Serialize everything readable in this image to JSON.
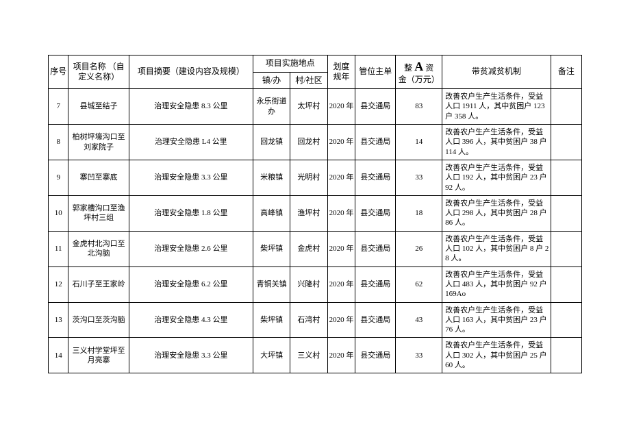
{
  "headers": {
    "seq": "序号",
    "name": "项目名称\n（自定义名称）",
    "summary": "项目摘要（建设内容及规模）",
    "location_group": "项目实施地点",
    "town": "镇/办",
    "village": "村/社区",
    "year": "划度规年",
    "unit": "管位主单",
    "fund_prefix": "整",
    "fund_mid": "A",
    "fund_suffix": "资",
    "fund_line2": "金（万元）",
    "mechanism": "带贫减贫机制",
    "remark": "备注"
  },
  "rows": [
    {
      "seq": "7",
      "name": "县城至结子",
      "summary": "治理安全隐患 8.3 公里",
      "town": "永乐街道办",
      "village": "太坪村",
      "year": "2020 年",
      "unit": "县交通局",
      "fund": "83",
      "mechanism": "改善农户生产生活条件，受益人口 1911 人，其中贫困户 123 户 358 人。",
      "remark": ""
    },
    {
      "seq": "8",
      "name": "柏树坪壕沟口至刘家院子",
      "summary": "治理安全隐患 L4 公里",
      "town": "回龙镇",
      "village": "回龙村",
      "year": "2020 年",
      "unit": "县交通局",
      "fund": "14",
      "mechanism": "改善农户生产生活条件，受益人口 396 人，其中贫困户 38 户 114 人。",
      "remark": ""
    },
    {
      "seq": "9",
      "name": "寨凹至寨底",
      "summary": "治理安全隐患 3.3 公里",
      "town": "米粮镇",
      "village": "光明村",
      "year": "2020 年",
      "unit": "县交通局",
      "fund": "33",
      "mechanism": "改善农户生产生活条件，受益人口 192 人，其中贫困户 23 户 92 人。",
      "remark": ""
    },
    {
      "seq": "10",
      "name": "郭家槽沟口至渔坪村三组",
      "summary": "治理安全隐患 1.8 公里",
      "town": "高峰镇",
      "village": "渔坪村",
      "year": "2020 年",
      "unit": "县交通局",
      "fund": "18",
      "mechanism": "改善农户生产生活条件，受益人口 298 人，其中贫困户 28 户 86 人。",
      "remark": ""
    },
    {
      "seq": "11",
      "name": "金虎村北沟口至北沟脑",
      "summary": "治理安全隐患 2.6 公里",
      "town": "柴坪镇",
      "village": "金虎村",
      "year": "2020 年",
      "unit": "县交通局",
      "fund": "26",
      "mechanism": "改善农户生产生活条件，受益人口 102 人，其中贫困户 8 户 28 人。",
      "remark": ""
    },
    {
      "seq": "12",
      "name": "石川子至王家岭",
      "summary": "治理安全隐患 6.2 公里",
      "town": "青铜关镇",
      "village": "兴隆村",
      "year": "2020 年",
      "unit": "县交通局",
      "fund": "62",
      "mechanism": "改善农户生产生活条件，受益人口 483 人，其中贫困户 92 户 169Ao",
      "remark": ""
    },
    {
      "seq": "13",
      "name": "茨沟口至茨沟脑",
      "summary": "治理安全隐患 4.3 公里",
      "town": "柴坪镇",
      "village": "石湾村",
      "year": "2020 年",
      "unit": "县交通局",
      "fund": "43",
      "mechanism": "改善农户生产生活条件，受益人口 163 人，其中贫困户 23 户 76 人。",
      "remark": ""
    },
    {
      "seq": "14",
      "name": "三义村学堂坪至月亮寨",
      "summary": "治理安全隐患 3.3 公里",
      "town": "大坪镇",
      "village": "三义村",
      "year": "2020 年",
      "unit": "县交通局",
      "fund": "33",
      "mechanism": "改善农户生产生活条件，受益人口 302 人，其中贫困户 25 户 60 人。",
      "remark": ""
    }
  ]
}
